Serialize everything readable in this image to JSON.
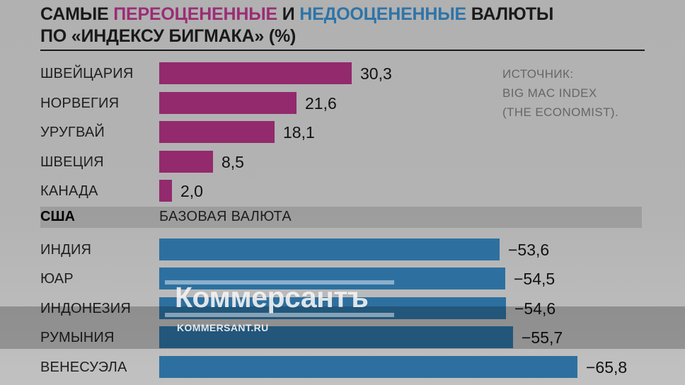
{
  "title": {
    "segments": [
      {
        "text": "САМЫЕ ",
        "color": "#1a1a1a"
      },
      {
        "text": "ПЕРЕОЦЕНЕННЫЕ",
        "color": "#9b2d75"
      },
      {
        "text": " И ",
        "color": "#1a1a1a"
      },
      {
        "text": "НЕДООЦЕНЕННЫЕ",
        "color": "#2e74a8"
      },
      {
        "text": " ВАЛЮТЫ",
        "color": "#1a1a1a"
      }
    ],
    "line2": "ПО «ИНДЕКСУ БИГМАКА» (%)"
  },
  "source": {
    "lines": [
      "ИСТОЧНИК:",
      "BIG MAC INDEX",
      "(THE ECONOMIST)."
    ]
  },
  "base_row": {
    "label": "США",
    "note": "БАЗОВАЯ ВАЛЮТА"
  },
  "watermark": {
    "logo": "Коммерсантъ",
    "url": "KOMMERSANT.RU"
  },
  "colors": {
    "overvalued_bar": "#932a6d",
    "undervalued_bar": "#2d70a0",
    "title_overvalued": "#9b2d75",
    "title_undervalued": "#2e74a8",
    "background": "#b3b3b3"
  },
  "chart_data": {
    "type": "bar",
    "orientation": "horizontal",
    "unit": "%",
    "title": "САМЫЕ ПЕРЕОЦЕНЕННЫЕ И НЕДООЦЕНЕННЫЕ ВАЛЮТЫ ПО «ИНДЕКСУ БИГМАКА» (%)",
    "xlim": [
      -70,
      35
    ],
    "grid": false,
    "series": [
      {
        "name": "Переоцененные",
        "color": "#932a6d",
        "items": [
          {
            "label": "ШВЕЙЦАРИЯ",
            "value": 30.3,
            "display": "30,3"
          },
          {
            "label": "НОРВЕГИЯ",
            "value": 21.6,
            "display": "21,6"
          },
          {
            "label": "УРУГВАЙ",
            "value": 18.1,
            "display": "18,1"
          },
          {
            "label": "ШВЕЦИЯ",
            "value": 8.5,
            "display": "8,5"
          },
          {
            "label": "КАНАДА",
            "value": 2.0,
            "display": "2,0"
          }
        ]
      },
      {
        "name": "Недооцененные",
        "color": "#2d70a0",
        "items": [
          {
            "label": "ИНДИЯ",
            "value": -53.6,
            "display": "−53,6"
          },
          {
            "label": "ЮАР",
            "value": -54.5,
            "display": "−54,5"
          },
          {
            "label": "ИНДОНЕЗИЯ",
            "value": -54.6,
            "display": "−54,6"
          },
          {
            "label": "РУМЫНИЯ",
            "value": -55.7,
            "display": "−55,7"
          },
          {
            "label": "ВЕНЕСУЭЛА",
            "value": -65.8,
            "display": "−65,8"
          }
        ]
      },
      {
        "name": "Базовая валюта",
        "items": [
          {
            "label": "США",
            "value": 0,
            "display": "БАЗОВАЯ ВАЛЮТА"
          }
        ]
      }
    ]
  }
}
